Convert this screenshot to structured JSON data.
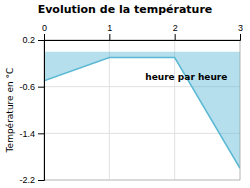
{
  "chart_data": {
    "type": "area",
    "title": "Evolution de la température",
    "ylabel": "Température en °C",
    "x": [
      0,
      1,
      2,
      3
    ],
    "values": [
      -0.5,
      -0.1,
      -0.1,
      -2.0
    ],
    "baseline": 0.0,
    "color": "#5bb8d4",
    "xlim": [
      0,
      3
    ],
    "ylim": [
      -2.2,
      0.2
    ],
    "xticks": [
      0,
      1,
      2,
      3
    ],
    "yticks": [
      0.2,
      -0.6,
      -1.4,
      -2.2
    ],
    "grid": true,
    "annotations": [
      {
        "text": "heure par heure",
        "x": 1.55,
        "y": -0.45
      }
    ]
  }
}
